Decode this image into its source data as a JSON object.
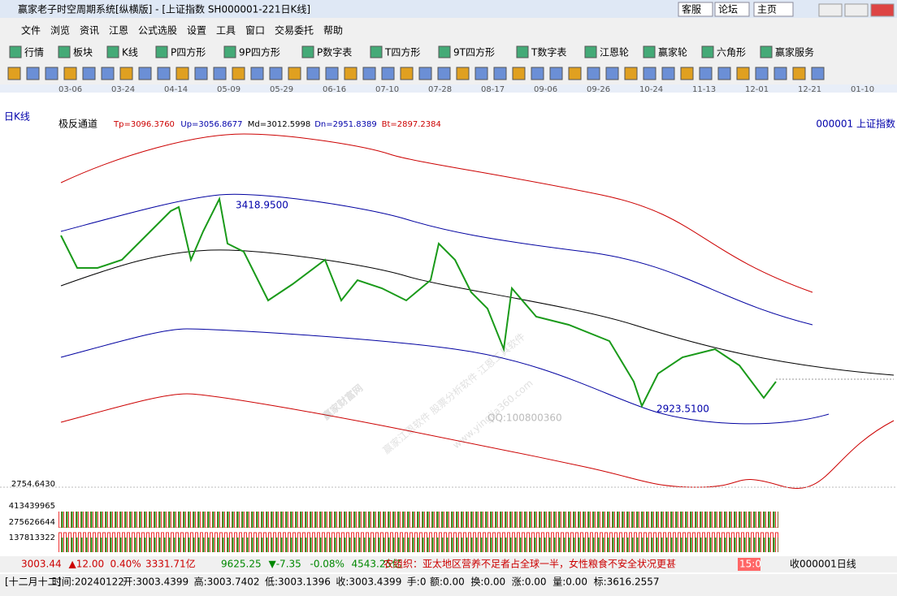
{
  "title_bar": {
    "title": "赢家老子时空周期系统[纵横版] - [上证指数  SH000001-221日K线]",
    "buttons": [
      "客服",
      "论坛",
      "主页"
    ]
  },
  "menu": [
    "文件",
    "浏览",
    "资讯",
    "江恩",
    "公式选股",
    "设置",
    "工具",
    "窗口",
    "交易委托",
    "帮助"
  ],
  "toolbar": [
    "行情",
    "板块",
    "K线",
    "P四方形",
    "9P四方形",
    "P数字表",
    "T四方形",
    "9T四方形",
    "T数字表",
    "江恩轮",
    "赢家轮",
    "六角形",
    "赢家服务"
  ],
  "dates": [
    "03-06",
    "03-24",
    "04-14",
    "05-09",
    "05-29",
    "06-16",
    "07-10",
    "07-28",
    "08-17",
    "09-06",
    "09-26",
    "10-24",
    "11-13",
    "12-01",
    "12-21",
    "01-10"
  ],
  "chart": {
    "period": "日K线",
    "indicator": "极反通道",
    "params": [
      "Tp=3096.3760",
      "Up=3056.8677",
      "Md=3012.5998",
      "Dn=2951.8389",
      "Bt=2897.2384"
    ],
    "symbol": "000001 上证指数",
    "high_label": "3418.9500",
    "low_label": "2923.5100",
    "volume_labels": [
      "2754.6430",
      "413439965",
      "275626644",
      "137813322"
    ]
  },
  "watermark": {
    "main": "赢家财富网",
    "sub": "赢家江恩软件 股票分析软件 江恩工具软件",
    "url": "www.yingjia360.com",
    "qq": "QQ:100800360"
  },
  "status": {
    "index1": [
      "3003.44",
      "▲12.00",
      "0.40%",
      "3331.71亿"
    ],
    "index2": [
      "9625.25",
      "▼-7.35",
      "-0.08%",
      "4543.25亿"
    ],
    "news": "农组织：亚太地区营养不足者占全球一半，女性粮食不安全状况更甚",
    "time": "15:0",
    "right": "收000001日线"
  },
  "bottom": [
    "[十二月十二]",
    "时间:20240122",
    "开:3003.4399",
    "高:3003.7402",
    "低:3003.1396",
    "收:3003.4399",
    "手:0",
    "额:0.00",
    "换:0.00",
    "涨:0.00",
    "量:0.00",
    "标:3616.2557"
  ]
}
